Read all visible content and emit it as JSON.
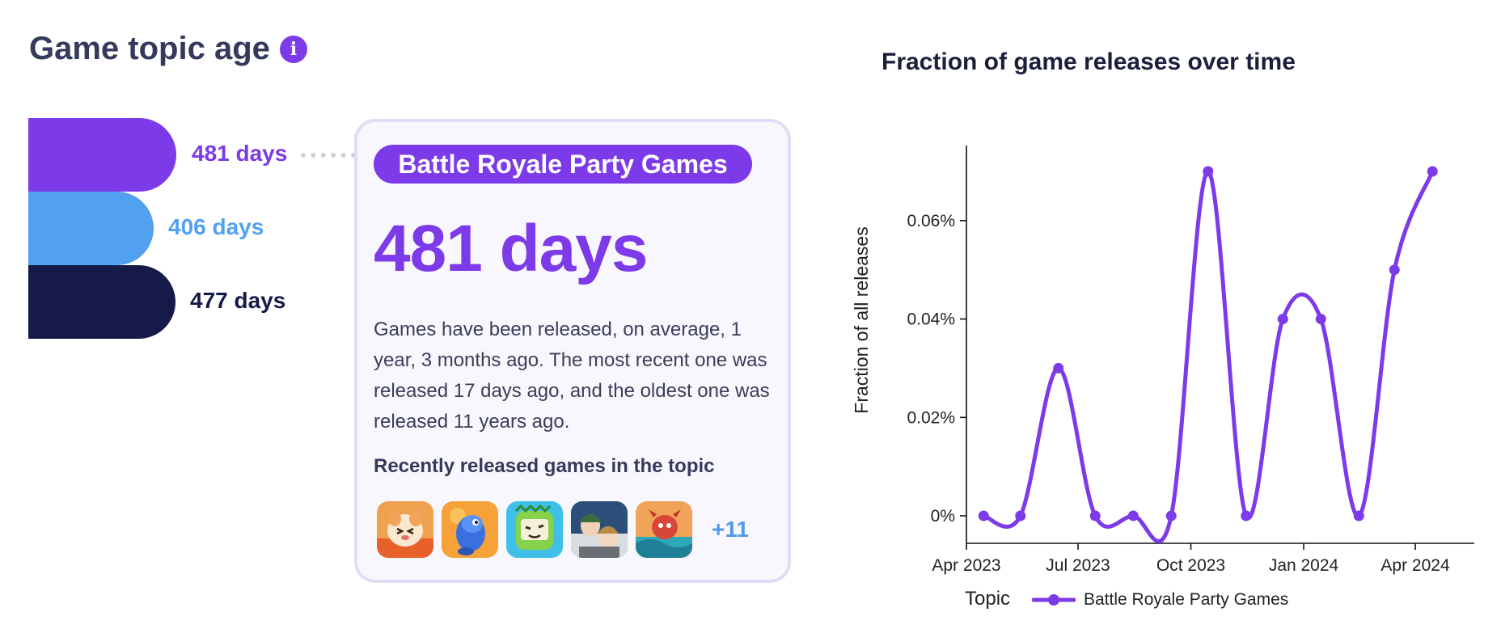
{
  "header": {
    "title": "Game topic age",
    "info_icon": "info-icon"
  },
  "age_bars": [
    {
      "label": "481 days",
      "value": 481,
      "color": "#7d3ae8"
    },
    {
      "label": "406 days",
      "value": 406,
      "color": "#52a0f0"
    },
    {
      "label": "477 days",
      "value": 477,
      "color": "#161a48"
    }
  ],
  "card": {
    "topic": "Battle Royale Party Games",
    "days": "481 days",
    "description": "Games have been released, on average, 1 year, 3 months ago. The most recent one was released 17 days ago, and the oldest one was released 11 years ago.",
    "recent_title": "Recently released games in the topic",
    "more_count": "+11",
    "thumbnails": [
      "game-icon-hamster",
      "game-icon-blue-dino",
      "game-icon-green-monster",
      "game-icon-soldiers",
      "game-icon-red-character"
    ]
  },
  "chart_data": {
    "type": "line",
    "title": "Fraction of game releases over time",
    "ylabel": "Fraction of all releases",
    "xlabel": "",
    "x_ticks": [
      "Apr 2023",
      "Jul 2023",
      "Oct 2023",
      "Jan 2024",
      "Apr 2024"
    ],
    "y_ticks": [
      "0%",
      "0.02%",
      "0.04%",
      "0.06%"
    ],
    "ylim": [
      0,
      0.07
    ],
    "legend_title": "Topic",
    "legend_placement": "bottom",
    "series": [
      {
        "name": "Battle Royale Party Games",
        "color": "#7d3ae8",
        "points": [
          {
            "x": "2023-04-15",
            "y": 0
          },
          {
            "x": "2023-05-15",
            "y": 0
          },
          {
            "x": "2023-06-15",
            "y": 0.03
          },
          {
            "x": "2023-07-15",
            "y": 0
          },
          {
            "x": "2023-08-15",
            "y": 0
          },
          {
            "x": "2023-09-15",
            "y": 0
          },
          {
            "x": "2023-10-15",
            "y": 0.07
          },
          {
            "x": "2023-11-15",
            "y": 0
          },
          {
            "x": "2023-12-15",
            "y": 0.04
          },
          {
            "x": "2024-01-15",
            "y": 0.04
          },
          {
            "x": "2024-02-15",
            "y": 0
          },
          {
            "x": "2024-03-15",
            "y": 0.05
          },
          {
            "x": "2024-04-15",
            "y": 0.07
          }
        ]
      }
    ]
  }
}
